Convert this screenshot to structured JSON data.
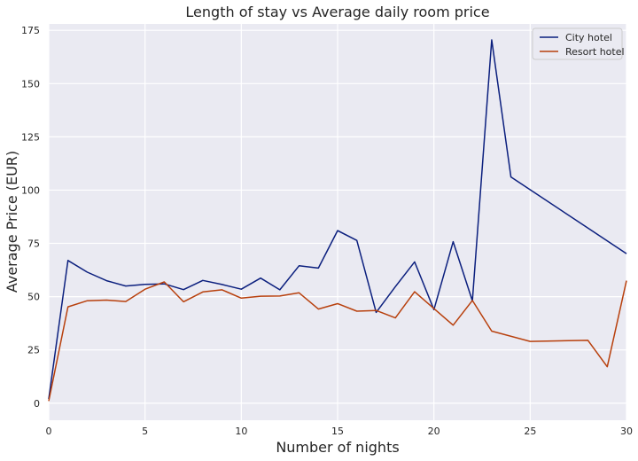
{
  "chart_data": {
    "type": "line",
    "title": "Length of stay vs Average daily room price",
    "xlabel": "Number of nights",
    "ylabel": "Average Price (EUR)",
    "xlim": [
      0,
      30
    ],
    "ylim": [
      -8,
      178
    ],
    "xticks": [
      0,
      5,
      10,
      15,
      20,
      25,
      30
    ],
    "yticks": [
      0,
      25,
      50,
      75,
      100,
      125,
      150,
      175
    ],
    "grid": true,
    "legend_position": "top-right",
    "series": [
      {
        "name": "City hotel",
        "color": "#0b1f7e",
        "x": [
          0,
          1,
          2,
          3,
          4,
          5,
          6,
          7,
          8,
          9,
          10,
          11,
          12,
          13,
          14,
          15,
          16,
          17,
          18,
          19,
          20,
          21,
          22,
          23,
          24,
          30
        ],
        "values": [
          2,
          67,
          61.5,
          57.5,
          55,
          55.8,
          56,
          53.3,
          57.6,
          55.7,
          53.5,
          58.7,
          53.2,
          64.5,
          63.4,
          81,
          76.4,
          42.6,
          54.7,
          66.3,
          43.9,
          75.8,
          48,
          170.5,
          106.2,
          70.2
        ]
      },
      {
        "name": "Resort hotel",
        "color": "#b8400d",
        "x": [
          0,
          1,
          2,
          3,
          4,
          5,
          6,
          7,
          8,
          9,
          10,
          11,
          12,
          13,
          14,
          15,
          16,
          17,
          18,
          19,
          20,
          21,
          22,
          23,
          25,
          28,
          29,
          30
        ],
        "values": [
          1,
          45.2,
          48.1,
          48.4,
          47.7,
          53.5,
          56.9,
          47.6,
          52.2,
          53.2,
          49.3,
          50.2,
          50.3,
          51.8,
          44.2,
          46.7,
          43.2,
          43.5,
          40,
          52.3,
          44.4,
          36.6,
          48.2,
          33.8,
          29,
          29.5,
          17.1,
          57.5
        ]
      }
    ]
  }
}
